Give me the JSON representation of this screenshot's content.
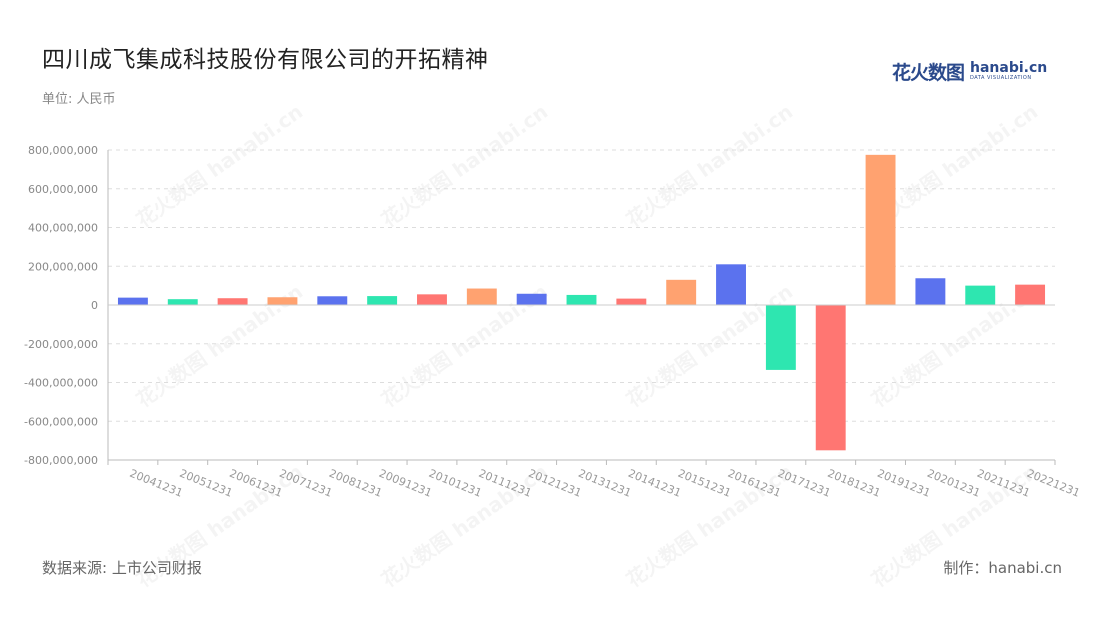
{
  "header": {
    "title": "四川成飞集成科技股份有限公司的开拓精神",
    "unit": "单位: 人民币"
  },
  "logo": {
    "cn": "花火数图",
    "en": "hanabi.cn",
    "en_sub": "DATA VISUALIZATION"
  },
  "footer": {
    "source": "数据来源: 上市公司财报",
    "credit": "制作：hanabi.cn"
  },
  "watermark": "花火数图 hanabi.cn",
  "chart_data": {
    "type": "bar",
    "categories": [
      "20041231",
      "20051231",
      "20061231",
      "20071231",
      "20081231",
      "20091231",
      "20101231",
      "20111231",
      "20121231",
      "20131231",
      "20141231",
      "20151231",
      "20161231",
      "20171231",
      "20181231",
      "20191231",
      "20201231",
      "20211231",
      "20221231"
    ],
    "values": [
      38000000,
      30000000,
      35000000,
      40000000,
      45000000,
      46000000,
      55000000,
      85000000,
      58000000,
      52000000,
      33000000,
      130000000,
      210000000,
      -335000000,
      -750000000,
      775000000,
      138000000,
      100000000,
      105000000
    ],
    "ylim": [
      -800000000,
      800000000
    ],
    "yticks": [
      800000000,
      600000000,
      400000000,
      200000000,
      0,
      -200000000,
      -400000000,
      -600000000,
      -800000000
    ],
    "ytick_labels": [
      "800,000,000",
      "600,000,000",
      "400,000,000",
      "200,000,000",
      "0",
      "-200,000,000",
      "-400,000,000",
      "-600,000,000",
      "-800,000,000"
    ],
    "grid": true,
    "palette": [
      "#5b72ee",
      "#2ee6b0",
      "#ff7672",
      "#ffa270"
    ]
  }
}
